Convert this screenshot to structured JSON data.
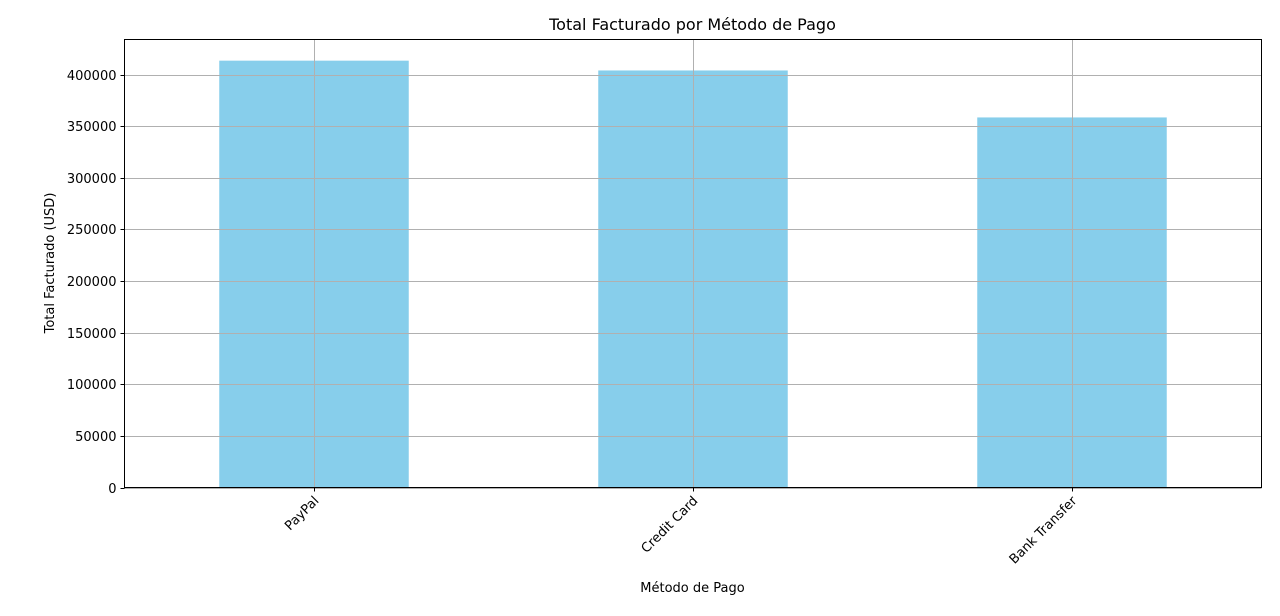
{
  "chart_data": {
    "type": "bar",
    "title": "Total Facturado por Método de Pago",
    "xlabel": "Método de Pago",
    "ylabel": "Total Facturado (USD)",
    "categories": [
      "PayPal",
      "Credit Card",
      "Bank Transfer"
    ],
    "values": [
      413500,
      404000,
      358500
    ],
    "ylim": [
      0,
      434000
    ],
    "yticks": [
      0,
      50000,
      100000,
      150000,
      200000,
      250000,
      300000,
      350000,
      400000
    ],
    "ytick_labels": [
      "0",
      "50000",
      "100000",
      "150000",
      "200000",
      "250000",
      "300000",
      "350000",
      "400000"
    ],
    "grid": true,
    "legend": "none",
    "bar_color": "#87ceeb",
    "grid_color": "#b0b0b0"
  }
}
